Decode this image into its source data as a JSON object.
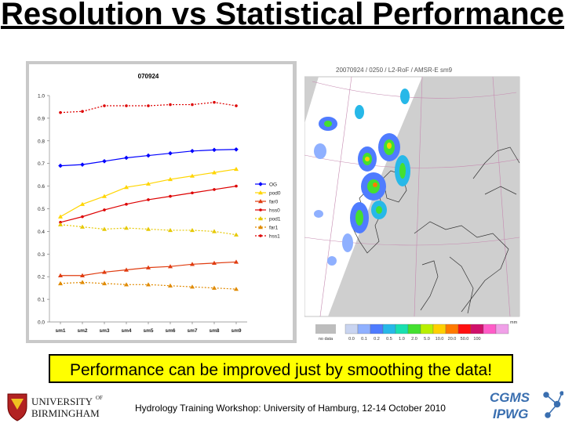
{
  "slide": {
    "title": "Resolution vs Statistical Performance",
    "callout": "Performance can be improved just by smoothing the data!",
    "footer": "Hydrology Training Workshop: University of Hamburg, 12-14 October 2010",
    "logo_left": {
      "line1": "UNIVERSITY",
      "sup": "OF",
      "line2": "BIRMINGHAM"
    },
    "logo_right": {
      "line1": "CGMS",
      "line2": "IPWG"
    }
  },
  "colors": {
    "OG": "#0000ff",
    "pod0": "#ffd500",
    "far0": "#e03c10",
    "hss0": "#dd0000",
    "pod1": "#e6c800",
    "far1": "#e08a00",
    "hss1": "#dd0000",
    "panel": "#c9c9c9",
    "plot": "#ffffff",
    "callout": "#ffff00"
  },
  "chart_data": {
    "type": "line",
    "title": "070924",
    "categories": [
      "sm1",
      "sm2",
      "sm3",
      "sm4",
      "sm5",
      "sm6",
      "sm7",
      "sm8",
      "sm9"
    ],
    "ylim": [
      0,
      1
    ],
    "yticks": [
      "0.0",
      "0.1",
      "0.2",
      "0.3",
      "0.4",
      "0.5",
      "0.6",
      "0.7",
      "0.8",
      "0.9",
      "1.0"
    ],
    "legend_position": "right",
    "series": [
      {
        "name": "OG",
        "values": [
          0.69,
          0.695,
          0.71,
          0.725,
          0.735,
          0.745,
          0.755,
          0.76,
          0.762
        ],
        "marker": "diamond",
        "dashed": false
      },
      {
        "name": "pod0",
        "values": [
          0.465,
          0.52,
          0.555,
          0.595,
          0.61,
          0.63,
          0.645,
          0.66,
          0.675
        ],
        "marker": "triangle",
        "dashed": false
      },
      {
        "name": "far0",
        "values": [
          0.205,
          0.205,
          0.22,
          0.23,
          0.24,
          0.245,
          0.255,
          0.26,
          0.265
        ],
        "marker": "triangle",
        "dashed": false
      },
      {
        "name": "hss0",
        "values": [
          0.44,
          0.465,
          0.495,
          0.52,
          0.54,
          0.555,
          0.57,
          0.585,
          0.6
        ],
        "marker": "dot",
        "dashed": false
      },
      {
        "name": "pod1",
        "values": [
          0.43,
          0.42,
          0.41,
          0.415,
          0.41,
          0.405,
          0.405,
          0.4,
          0.385
        ],
        "marker": "triangle",
        "dashed": true
      },
      {
        "name": "far1",
        "values": [
          0.17,
          0.175,
          0.17,
          0.165,
          0.165,
          0.16,
          0.155,
          0.15,
          0.145
        ],
        "marker": "triangle",
        "dashed": true
      },
      {
        "name": "hss1",
        "values": [
          0.925,
          0.93,
          0.955,
          0.955,
          0.955,
          0.96,
          0.96,
          0.97,
          0.955
        ],
        "marker": "dot",
        "dashed": true
      }
    ]
  },
  "map": {
    "header": "20070924 / 0250 / L2-RoF / AMSR-E sm9",
    "legend_labels": [
      "no data",
      "0.0",
      "0.1",
      "0.2",
      "0.5",
      "1.0",
      "2.0",
      "5.0",
      "10.0",
      "20.0",
      "50.0",
      "100"
    ],
    "legend_unit": "mm",
    "legend_colors": [
      "#bdbdbd",
      "#c9d4f0",
      "#8fb0ff",
      "#4f7cff",
      "#27b8e8",
      "#19e0b0",
      "#44e030",
      "#b8f000",
      "#ffd000",
      "#ff7a00",
      "#ff1010",
      "#d0106a",
      "#ff5cc8",
      "#f0a0e8"
    ]
  }
}
